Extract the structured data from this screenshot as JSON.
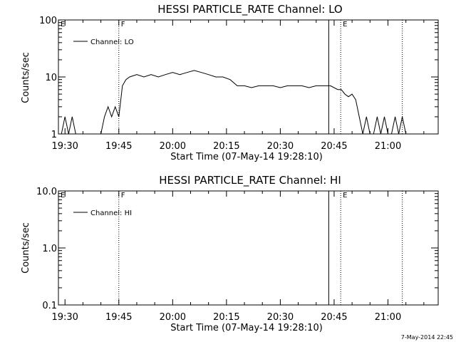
{
  "footer": "7-May-2014 22:45",
  "chart_data": [
    {
      "type": "line",
      "title": "HESSI PARTICLE_RATE Channel: LO",
      "xlabel": "Start Time (07-May-14 19:28:10)",
      "ylabel": "Counts/sec",
      "yscale": "log",
      "ylim": [
        1,
        100
      ],
      "yticks": [
        1,
        10,
        100
      ],
      "ytick_labels": [
        "1",
        "10",
        "100"
      ],
      "xlim": [
        "19:28:10",
        "21:14:00"
      ],
      "xticks": [
        "19:30",
        "19:45",
        "20:00",
        "20:15",
        "20:30",
        "20:45",
        "21:00"
      ],
      "legend": "top-left",
      "series": [
        {
          "name": "Channel: LO",
          "x": [
            "19:29",
            "19:30",
            "19:31",
            "19:32",
            "19:33",
            "19:34",
            "19:35",
            "19:36",
            "19:37",
            "19:38",
            "19:39",
            "19:40",
            "19:41",
            "19:42",
            "19:43",
            "19:44",
            "19:45",
            "19:46",
            "19:47",
            "19:48",
            "19:50",
            "19:52",
            "19:54",
            "19:56",
            "19:58",
            "20:00",
            "20:02",
            "20:04",
            "20:06",
            "20:08",
            "20:10",
            "20:12",
            "20:14",
            "20:16",
            "20:18",
            "20:20",
            "20:22",
            "20:24",
            "20:26",
            "20:28",
            "20:30",
            "20:32",
            "20:34",
            "20:36",
            "20:38",
            "20:40",
            "20:42",
            "20:44",
            "20:46",
            "20:47",
            "20:48",
            "20:49",
            "20:50",
            "20:51",
            "20:52",
            "20:53",
            "20:54",
            "20:55",
            "20:56",
            "20:57",
            "20:58",
            "20:59",
            "21:00",
            "21:01",
            "21:02",
            "21:03",
            "21:04",
            "21:05",
            "21:06"
          ],
          "values": [
            1,
            2,
            1,
            2,
            1,
            1,
            1,
            1,
            1,
            1,
            1,
            1,
            2,
            3,
            2,
            3,
            2,
            7,
            9,
            10,
            11,
            10,
            11,
            10,
            11,
            12,
            11,
            12,
            13,
            12,
            11,
            10,
            10,
            9,
            7,
            7,
            6.5,
            7,
            7,
            7,
            6.5,
            7,
            7,
            7,
            6.5,
            7,
            7,
            7,
            6,
            6,
            5,
            4.5,
            5,
            4,
            2,
            1,
            2,
            1,
            1,
            2,
            1,
            2,
            1,
            1,
            2,
            1,
            2,
            1,
            1
          ]
        }
      ],
      "markers": [
        {
          "label": "E",
          "x": "19:28:10",
          "style": "dotted"
        },
        {
          "label": "F",
          "x": "19:45:00",
          "style": "dotted"
        },
        {
          "label": "",
          "x": "20:43:30",
          "style": "solid"
        },
        {
          "label": "E",
          "x": "20:46:50",
          "style": "dotted"
        },
        {
          "label": "",
          "x": "21:04:00",
          "style": "dotted"
        }
      ]
    },
    {
      "type": "line",
      "title": "HESSI PARTICLE_RATE Channel: HI",
      "xlabel": "Start Time (07-May-14 19:28:10)",
      "ylabel": "Counts/sec",
      "yscale": "log",
      "ylim": [
        0.1,
        10
      ],
      "yticks": [
        0.1,
        1,
        10
      ],
      "ytick_labels": [
        "0.1",
        "1.0",
        "10.0"
      ],
      "xlim": [
        "19:28:10",
        "21:14:00"
      ],
      "xticks": [
        "19:30",
        "19:45",
        "20:00",
        "20:15",
        "20:30",
        "20:45",
        "21:00"
      ],
      "legend": "top-left",
      "series": [
        {
          "name": "Channel: HI",
          "x": [],
          "values": []
        }
      ],
      "markers": [
        {
          "label": "E",
          "x": "19:28:10",
          "style": "dotted"
        },
        {
          "label": "F",
          "x": "19:45:00",
          "style": "dotted"
        },
        {
          "label": "",
          "x": "20:43:30",
          "style": "solid"
        },
        {
          "label": "E",
          "x": "20:46:50",
          "style": "dotted"
        },
        {
          "label": "",
          "x": "21:04:00",
          "style": "dotted"
        }
      ]
    }
  ]
}
